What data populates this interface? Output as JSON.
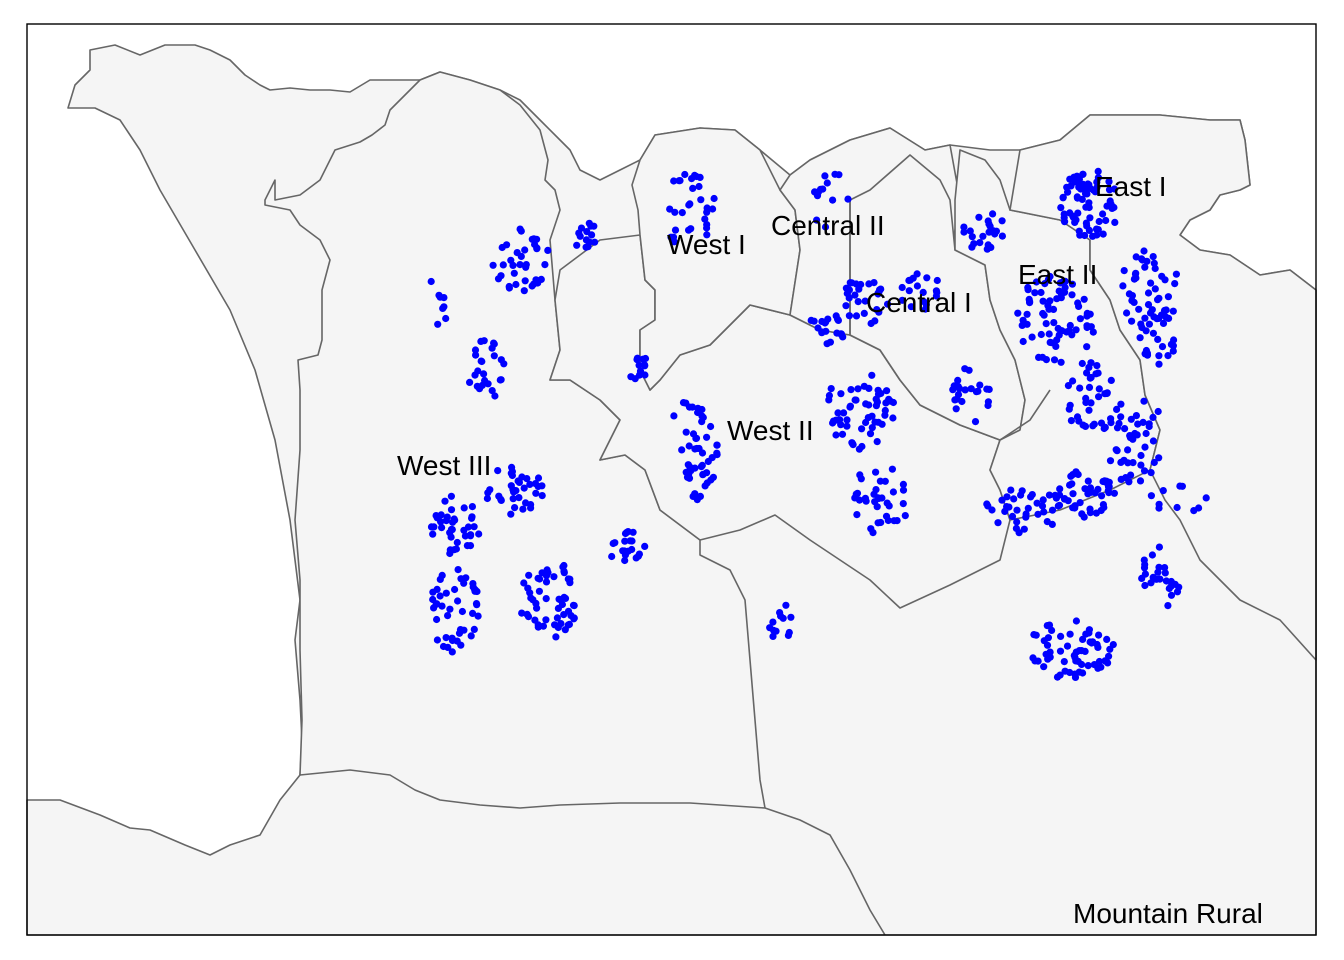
{
  "map": {
    "district_labels": [
      "East I",
      "East II",
      "Central II",
      "Central I",
      "West I",
      "West II",
      "West III",
      "Mountain Rural"
    ],
    "point_color": "#0000ff",
    "land_color": "#f5f5f5",
    "border_color": "#666666",
    "sea_color": "#ffffff"
  }
}
